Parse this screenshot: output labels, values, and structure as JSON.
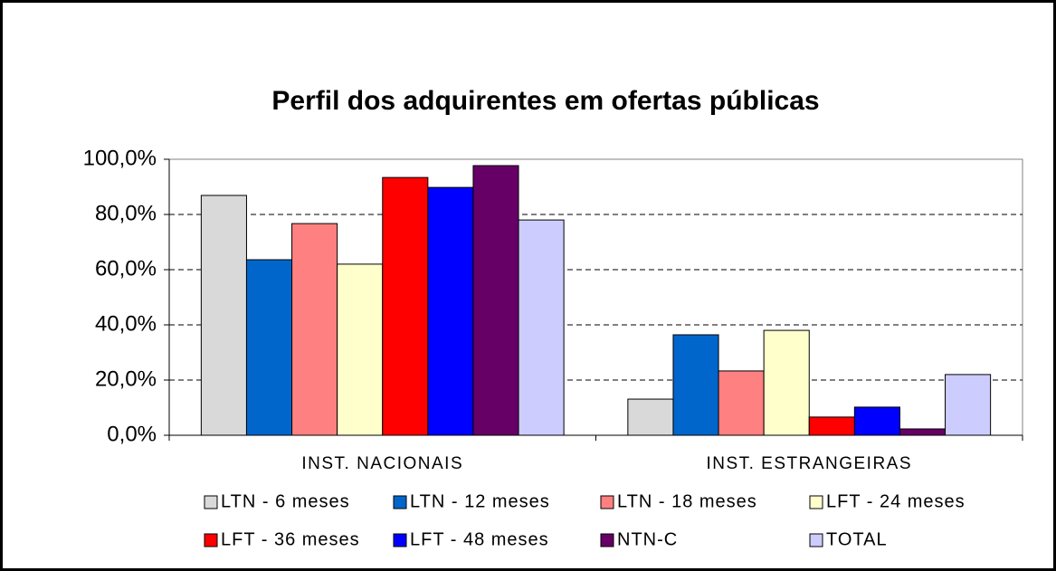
{
  "chart_data": {
    "type": "bar",
    "title": "Perfil dos adquirentes em ofertas públicas",
    "categories": [
      "INST. NACIONAIS",
      "INST. ESTRANGEIRAS"
    ],
    "series": [
      {
        "name": "LTN - 6 meses",
        "color": "#d9d9d9",
        "values": [
          86.9,
          13.1
        ]
      },
      {
        "name": "LTN - 12 meses",
        "color": "#0066cc",
        "values": [
          63.6,
          36.4
        ]
      },
      {
        "name": "LTN - 18 meses",
        "color": "#ff8080",
        "values": [
          76.7,
          23.3
        ]
      },
      {
        "name": "LFT - 24 meses",
        "color": "#ffffcc",
        "values": [
          62,
          38
        ]
      },
      {
        "name": "LFT - 36 meses",
        "color": "#ff0000",
        "values": [
          93.4,
          6.6
        ]
      },
      {
        "name": "LFT - 48 meses",
        "color": "#0000ff",
        "values": [
          89.8,
          10.2
        ]
      },
      {
        "name": "NTN-C",
        "color": "#660066",
        "values": [
          97.7,
          2.3
        ]
      },
      {
        "name": "TOTAL",
        "color": "#ccccff",
        "values": [
          78,
          22
        ]
      }
    ],
    "ylim": [
      0,
      100
    ],
    "yticks": [
      {
        "value": 0,
        "label": "0,0%"
      },
      {
        "value": 20,
        "label": "20,0%"
      },
      {
        "value": 40,
        "label": "40,0%"
      },
      {
        "value": 60,
        "label": "60,0%"
      },
      {
        "value": 80,
        "label": "80,0%"
      },
      {
        "value": 100,
        "label": "100,0%"
      }
    ],
    "grid": true
  }
}
